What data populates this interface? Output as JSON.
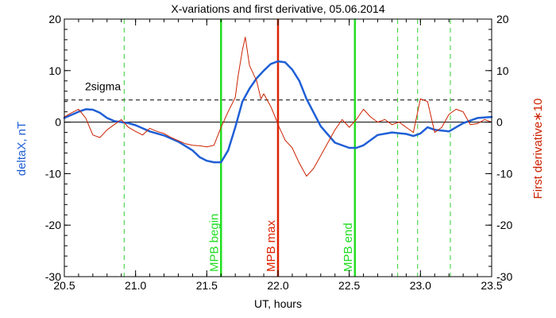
{
  "chart_data": {
    "type": "line",
    "title": "X-variations and first derivative, 05.06.2014",
    "xlabel": "UT, hours",
    "ylabel_left": "deltaX, nT",
    "ylabel_right": "First derivative∗10",
    "xlim": [
      20.5,
      23.5
    ],
    "ylim": [
      -30,
      20
    ],
    "xticks": [
      "20.5",
      "21.0",
      "21.5",
      "22.0",
      "22.5",
      "23.0",
      "23.5"
    ],
    "yticks": [
      "20",
      "10",
      "0",
      "-10",
      "-20",
      "-30"
    ],
    "colors": {
      "deltaX": "#1f5fd6",
      "derivative": "#cc2200",
      "mpb_lines": "#22dd22",
      "mpb_max": "#dd2200",
      "dashed_markers": "#33cc33",
      "axis": "#000000"
    },
    "reference_lines": {
      "zero": 0,
      "two_sigma": {
        "y": 4.3,
        "label": "2sigma"
      }
    },
    "vertical_markers": [
      {
        "x": 21.6,
        "label": "MPB begin",
        "style": "solid",
        "color": "#22dd22"
      },
      {
        "x": 22.0,
        "label": "MPB max",
        "style": "solid",
        "color": "#dd2200"
      },
      {
        "x": 22.54,
        "label": "MPB end",
        "style": "solid",
        "color": "#22dd22"
      }
    ],
    "dashed_markers_x": [
      20.92,
      22.84,
      22.98,
      23.21
    ],
    "series": [
      {
        "key": "deltaX",
        "x": [
          20.5,
          20.6,
          20.65,
          20.7,
          20.75,
          20.8,
          20.85,
          20.9,
          20.95,
          21.0,
          21.05,
          21.1,
          21.2,
          21.3,
          21.4,
          21.45,
          21.5,
          21.55,
          21.6,
          21.65,
          21.7,
          21.75,
          21.8,
          21.85,
          21.9,
          21.95,
          22.0,
          22.05,
          22.1,
          22.15,
          22.2,
          22.3,
          22.4,
          22.5,
          22.55,
          22.6,
          22.7,
          22.8,
          22.9,
          22.95,
          23.0,
          23.05,
          23.1,
          23.2,
          23.3,
          23.4,
          23.5
        ],
        "y": [
          0.8,
          2.0,
          2.5,
          2.4,
          1.8,
          0.8,
          0.2,
          0.0,
          -0.2,
          -0.6,
          -1.2,
          -1.8,
          -2.6,
          -3.8,
          -5.5,
          -6.8,
          -7.5,
          -7.8,
          -7.8,
          -5.5,
          -1.0,
          4.0,
          6.5,
          8.5,
          10.0,
          11.3,
          11.8,
          11.6,
          10.2,
          8.0,
          4.5,
          -0.8,
          -4.0,
          -5.0,
          -5.0,
          -4.5,
          -2.5,
          -2.0,
          -2.3,
          -2.7,
          -2.2,
          -1.0,
          -1.5,
          -1.8,
          -0.2,
          0.8,
          1.0
        ]
      },
      {
        "key": "derivative",
        "x": [
          20.5,
          20.55,
          20.6,
          20.65,
          20.7,
          20.75,
          20.8,
          20.85,
          20.9,
          20.95,
          21.0,
          21.05,
          21.1,
          21.15,
          21.2,
          21.25,
          21.3,
          21.35,
          21.4,
          21.45,
          21.5,
          21.55,
          21.6,
          21.62,
          21.65,
          21.7,
          21.72,
          21.75,
          21.77,
          21.8,
          21.85,
          21.88,
          21.9,
          21.95,
          21.98,
          22.0,
          22.05,
          22.1,
          22.15,
          22.2,
          22.25,
          22.3,
          22.35,
          22.4,
          22.45,
          22.5,
          22.55,
          22.6,
          22.65,
          22.7,
          22.75,
          22.8,
          22.85,
          22.9,
          22.95,
          23.0,
          23.05,
          23.1,
          23.15,
          23.2,
          23.25,
          23.3,
          23.35,
          23.4,
          23.45,
          23.5
        ],
        "y": [
          1.0,
          1.8,
          2.5,
          0.8,
          -2.5,
          -3.0,
          -1.5,
          -0.5,
          0.5,
          -1.0,
          -1.8,
          -2.5,
          -1.2,
          -1.8,
          -2.2,
          -3.0,
          -3.6,
          -4.2,
          -4.5,
          -4.6,
          -4.8,
          -4.5,
          -1.0,
          0.2,
          2.0,
          4.8,
          9.0,
          14.0,
          16.5,
          11.0,
          8.0,
          4.5,
          5.5,
          3.0,
          1.0,
          -0.5,
          -3.5,
          -5.0,
          -8.0,
          -10.5,
          -9.0,
          -6.5,
          -4.0,
          -1.5,
          0.5,
          -1.0,
          0.5,
          2.5,
          1.0,
          0.0,
          0.5,
          -0.5,
          0.0,
          -1.0,
          -2.0,
          4.5,
          4.0,
          -2.0,
          -1.0,
          1.5,
          2.5,
          2.0,
          -0.5,
          -0.3,
          0.5,
          0.0
        ]
      }
    ]
  }
}
